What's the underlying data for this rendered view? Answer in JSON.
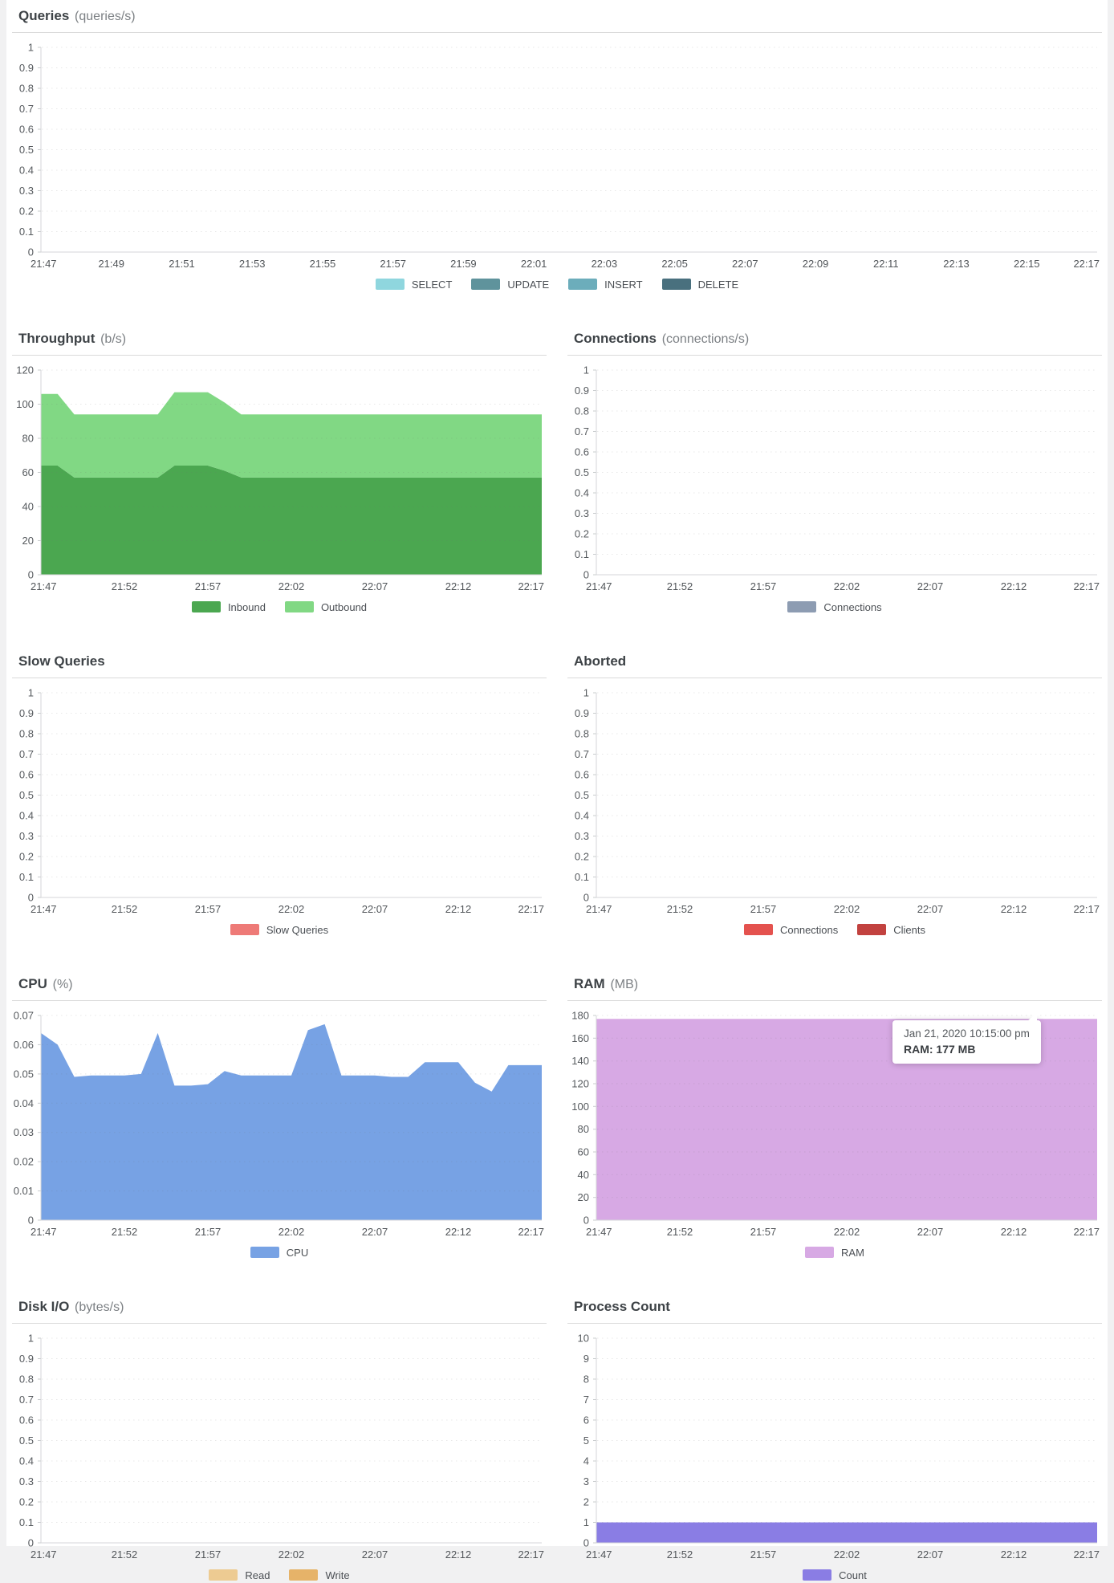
{
  "chart_data": [
    {
      "id": "queries",
      "type": "area",
      "title": "Queries",
      "unit": "(queries/s)",
      "ylim": [
        0,
        1
      ],
      "yticks": [
        "0",
        "0.1",
        "0.2",
        "0.3",
        "0.4",
        "0.5",
        "0.6",
        "0.7",
        "0.8",
        "0.9",
        "1"
      ],
      "ymax": 1,
      "xlabels": [
        "21:47",
        "21:49",
        "21:51",
        "21:53",
        "21:55",
        "21:57",
        "21:59",
        "22:01",
        "22:03",
        "22:05",
        "22:07",
        "22:09",
        "22:11",
        "22:13",
        "22:15",
        "22:17"
      ],
      "grid": "dotted-horizontal",
      "legend_position": "bottom",
      "series": [
        {
          "name": "SELECT",
          "color": "#8fd6de",
          "values": []
        },
        {
          "name": "UPDATE",
          "color": "#5f939c",
          "values": []
        },
        {
          "name": "INSERT",
          "color": "#6cadbb",
          "values": []
        },
        {
          "name": "DELETE",
          "color": "#49707e",
          "values": []
        }
      ]
    },
    {
      "id": "throughput",
      "type": "area",
      "stacked": true,
      "title": "Throughput",
      "unit": "(b/s)",
      "ylim": [
        0,
        120
      ],
      "yticks": [
        "0",
        "20",
        "40",
        "60",
        "80",
        "100",
        "120"
      ],
      "ymax": 120,
      "xlabels": [
        "21:47",
        "21:52",
        "21:57",
        "22:02",
        "22:07",
        "22:12",
        "22:17"
      ],
      "x_start": "21:47",
      "x_end": "22:17",
      "x_step_minutes": 1,
      "grid": "dotted-horizontal",
      "legend_position": "bottom",
      "series": [
        {
          "name": "Inbound",
          "color": "#4ba750",
          "values": [
            64,
            64,
            57,
            57,
            57,
            57,
            57,
            57,
            64,
            64,
            64,
            61,
            57,
            57,
            57,
            57,
            57,
            57,
            57,
            57,
            57,
            57,
            57,
            57,
            57,
            57,
            57,
            57,
            57,
            57,
            57
          ]
        },
        {
          "name": "Outbound",
          "color": "#81d884",
          "values": [
            42,
            42,
            37,
            37,
            37,
            37,
            37,
            37,
            43,
            43,
            43,
            40,
            37,
            37,
            37,
            37,
            37,
            37,
            37,
            37,
            37,
            37,
            37,
            37,
            37,
            37,
            37,
            37,
            37,
            37,
            37
          ]
        }
      ]
    },
    {
      "id": "connections",
      "type": "area",
      "title": "Connections",
      "unit": "(connections/s)",
      "ylim": [
        0,
        1
      ],
      "yticks": [
        "0",
        "0.1",
        "0.2",
        "0.3",
        "0.4",
        "0.5",
        "0.6",
        "0.7",
        "0.8",
        "0.9",
        "1"
      ],
      "ymax": 1,
      "xlabels": [
        "21:47",
        "21:52",
        "21:57",
        "22:02",
        "22:07",
        "22:12",
        "22:17"
      ],
      "grid": "dotted-horizontal",
      "legend_position": "bottom",
      "series": [
        {
          "name": "Connections",
          "color": "#8d9cb2",
          "values": []
        }
      ]
    },
    {
      "id": "slow-queries",
      "type": "area",
      "title": "Slow Queries",
      "unit": "",
      "ylim": [
        0,
        1
      ],
      "yticks": [
        "0",
        "0.1",
        "0.2",
        "0.3",
        "0.4",
        "0.5",
        "0.6",
        "0.7",
        "0.8",
        "0.9",
        "1"
      ],
      "ymax": 1,
      "xlabels": [
        "21:47",
        "21:52",
        "21:57",
        "22:02",
        "22:07",
        "22:12",
        "22:17"
      ],
      "grid": "dotted-horizontal",
      "legend_position": "bottom",
      "series": [
        {
          "name": "Slow Queries",
          "color": "#ee7a77",
          "values": []
        }
      ]
    },
    {
      "id": "aborted",
      "type": "area",
      "title": "Aborted",
      "unit": "",
      "ylim": [
        0,
        1
      ],
      "yticks": [
        "0",
        "0.1",
        "0.2",
        "0.3",
        "0.4",
        "0.5",
        "0.6",
        "0.7",
        "0.8",
        "0.9",
        "1"
      ],
      "ymax": 1,
      "xlabels": [
        "21:47",
        "21:52",
        "21:57",
        "22:02",
        "22:07",
        "22:12",
        "22:17"
      ],
      "grid": "dotted-horizontal",
      "legend_position": "bottom",
      "series": [
        {
          "name": "Connections",
          "color": "#e4524e",
          "values": []
        },
        {
          "name": "Clients",
          "color": "#c2423f",
          "values": []
        }
      ]
    },
    {
      "id": "cpu",
      "type": "area",
      "title": "CPU",
      "unit": "(%)",
      "ylim": [
        0,
        0.07
      ],
      "yticks": [
        "0",
        "0.01",
        "0.02",
        "0.03",
        "0.04",
        "0.05",
        "0.06",
        "0.07"
      ],
      "ymax": 0.07,
      "xlabels": [
        "21:47",
        "21:52",
        "21:57",
        "22:02",
        "22:07",
        "22:12",
        "22:17"
      ],
      "x_start": "21:47",
      "x_end": "22:17",
      "x_step_minutes": 1,
      "grid": "dotted-horizontal",
      "legend_position": "bottom",
      "series": [
        {
          "name": "CPU",
          "color": "#77a2e4",
          "values": [
            0.064,
            0.06,
            0.049,
            0.0495,
            0.0495,
            0.0495,
            0.05,
            0.064,
            0.046,
            0.046,
            0.0465,
            0.051,
            0.0495,
            0.0495,
            0.0495,
            0.0495,
            0.065,
            0.067,
            0.0495,
            0.0495,
            0.0495,
            0.049,
            0.049,
            0.054,
            0.054,
            0.054,
            0.047,
            0.044,
            0.053,
            0.053,
            0.053
          ]
        }
      ]
    },
    {
      "id": "ram",
      "type": "area",
      "title": "RAM",
      "unit": "(MB)",
      "ylim": [
        0,
        180
      ],
      "yticks": [
        "0",
        "20",
        "40",
        "60",
        "80",
        "100",
        "120",
        "140",
        "160",
        "180"
      ],
      "ymax": 180,
      "xlabels": [
        "21:47",
        "21:52",
        "21:57",
        "22:02",
        "22:07",
        "22:12",
        "22:17"
      ],
      "x_start": "21:47",
      "x_end": "22:17",
      "x_step_minutes": 1,
      "grid": "dotted-horizontal",
      "legend_position": "bottom",
      "tooltip": {
        "datetime": "Jan 21, 2020 10:15:00 pm",
        "value": "RAM: 177 MB"
      },
      "series": [
        {
          "name": "RAM",
          "color": "#d7a9e4",
          "values": [
            177,
            177,
            177,
            177,
            177,
            177,
            177,
            177,
            177,
            177,
            177,
            177,
            177,
            177,
            177,
            177,
            177,
            177,
            177,
            177,
            177,
            177,
            177,
            177,
            177,
            177,
            177,
            177,
            177,
            177,
            177
          ]
        }
      ]
    },
    {
      "id": "disk-io",
      "type": "area",
      "title": "Disk I/O",
      "unit": "(bytes/s)",
      "ylim": [
        0,
        1
      ],
      "yticks": [
        "0",
        "0.1",
        "0.2",
        "0.3",
        "0.4",
        "0.5",
        "0.6",
        "0.7",
        "0.8",
        "0.9",
        "1"
      ],
      "ymax": 1,
      "xlabels": [
        "21:47",
        "21:52",
        "21:57",
        "22:02",
        "22:07",
        "22:12",
        "22:17"
      ],
      "grid": "dotted-horizontal",
      "legend_position": "bottom",
      "series": [
        {
          "name": "Read",
          "color": "#edcb92",
          "values": []
        },
        {
          "name": "Write",
          "color": "#e6b369",
          "values": []
        }
      ]
    },
    {
      "id": "process-count",
      "type": "area",
      "title": "Process Count",
      "unit": "",
      "ylim": [
        0,
        10
      ],
      "yticks": [
        "0",
        "1",
        "2",
        "3",
        "4",
        "5",
        "6",
        "7",
        "8",
        "9",
        "10"
      ],
      "ymax": 10,
      "xlabels": [
        "21:47",
        "21:52",
        "21:57",
        "22:02",
        "22:07",
        "22:12",
        "22:17"
      ],
      "x_start": "21:47",
      "x_end": "22:17",
      "x_step_minutes": 1,
      "grid": "dotted-horizontal",
      "legend_position": "bottom",
      "series": [
        {
          "name": "Count",
          "color": "#8a7de4",
          "values": [
            1,
            1,
            1,
            1,
            1,
            1,
            1,
            1,
            1,
            1,
            1,
            1,
            1,
            1,
            1,
            1,
            1,
            1,
            1,
            1,
            1,
            1,
            1,
            1,
            1,
            1,
            1,
            1,
            1,
            1,
            1
          ]
        }
      ]
    }
  ]
}
